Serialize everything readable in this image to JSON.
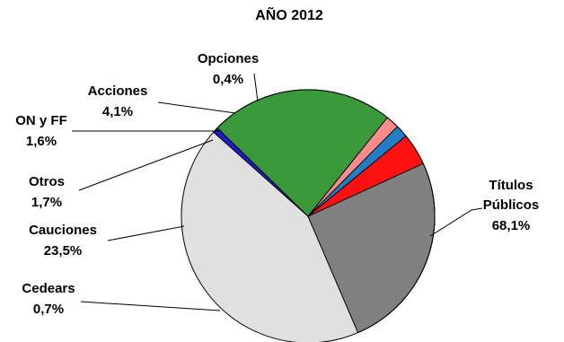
{
  "chart_data": {
    "type": "pie",
    "title": "AÑO 2012",
    "slices": [
      {
        "label": "Títulos Públicos",
        "value": 68.1,
        "value_label": "68,1%",
        "color": "#e0e0e0"
      },
      {
        "label": "Cedears",
        "value": 0.7,
        "value_label": "0,7%",
        "color": "#1c1cd6"
      },
      {
        "label": "Cauciones",
        "value": 23.5,
        "value_label": "23,5%",
        "color": "#3a9a3a"
      },
      {
        "label": "Otros",
        "value": 1.7,
        "value_label": "1,7%",
        "color": "#ff8a8a"
      },
      {
        "label": "ON y FF",
        "value": 1.6,
        "value_label": "1,6%",
        "color": "#1f7fc6"
      },
      {
        "label": "Acciones",
        "value": 4.1,
        "value_label": "4,1%",
        "color": "#ff1111"
      },
      {
        "label": "Opciones",
        "value": 0.4,
        "value_label": "0,4%",
        "color": "#808080"
      }
    ],
    "labels_display": {
      "titulos_line1": "Títulos",
      "titulos_line2": "Públicos"
    },
    "legend": "none"
  }
}
